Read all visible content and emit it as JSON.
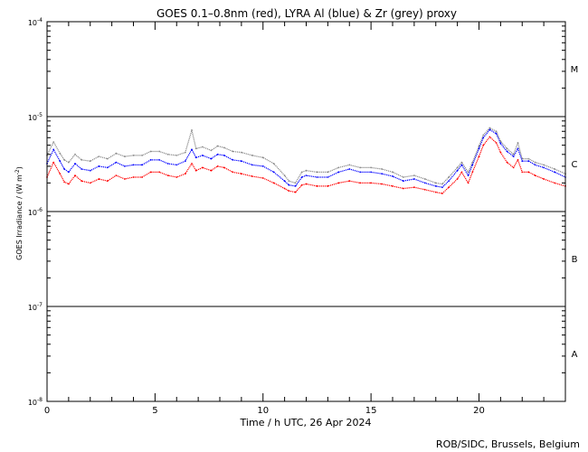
{
  "chart_data": {
    "type": "line",
    "title": "GOES 0.1–0.8nm (red), LYRA Al (blue) & Zr (grey) proxy",
    "xlabel": "Time / h UTC, 26 Apr 2024",
    "ylabel_main": "GOES Irradiance / (W m",
    "ylabel_sup": "-2",
    "ylabel_end": ")",
    "yscale": "log",
    "ylim": [
      1e-08,
      0.0001
    ],
    "xlim": [
      0,
      24
    ],
    "x_ticks": [
      {
        "value": 0,
        "label": "0"
      },
      {
        "value": 5,
        "label": "5"
      },
      {
        "value": 10,
        "label": "10"
      },
      {
        "value": 15,
        "label": "15"
      },
      {
        "value": 20,
        "label": "20"
      }
    ],
    "y_ticks": [
      {
        "value": 0.0001,
        "base": "10",
        "exp": "-4"
      },
      {
        "value": 1e-05,
        "base": "10",
        "exp": "-5"
      },
      {
        "value": 1e-06,
        "base": "10",
        "exp": "-6"
      },
      {
        "value": 1e-07,
        "base": "10",
        "exp": "-7"
      },
      {
        "value": 1e-08,
        "base": "10",
        "exp": "-8"
      }
    ],
    "class_lines": [
      1e-05,
      1e-06,
      1e-07
    ],
    "class_labels": [
      {
        "label": "M",
        "value": 3.2e-05
      },
      {
        "label": "C",
        "value": 3.2e-06
      },
      {
        "label": "B",
        "value": 3.2e-07
      },
      {
        "label": "A",
        "value": 3.2e-08
      }
    ],
    "series": [
      {
        "name": "GOES 0.1–0.8nm",
        "color": "#ff0000",
        "x": [
          0,
          0.3,
          0.6,
          0.8,
          1.0,
          1.3,
          1.6,
          2.0,
          2.4,
          2.8,
          3.2,
          3.6,
          4.0,
          4.4,
          4.8,
          5.2,
          5.6,
          6.0,
          6.4,
          6.7,
          6.9,
          7.2,
          7.6,
          7.9,
          8.2,
          8.6,
          9.0,
          9.5,
          10.0,
          10.5,
          11.0,
          11.2,
          11.5,
          11.8,
          12.0,
          12.5,
          13.0,
          13.5,
          14.0,
          14.5,
          15.0,
          15.5,
          16.0,
          16.5,
          17.0,
          17.5,
          18.0,
          18.3,
          18.6,
          19.0,
          19.2,
          19.5,
          19.7,
          20.0,
          20.2,
          20.5,
          20.8,
          21.0,
          21.3,
          21.6,
          21.8,
          22.0,
          22.3,
          22.6,
          23.0,
          23.5,
          24.0
        ],
        "y": [
          2.3e-06,
          3.3e-06,
          2.5e-06,
          2.05e-06,
          1.95e-06,
          2.4e-06,
          2.1e-06,
          2e-06,
          2.2e-06,
          2.1e-06,
          2.4e-06,
          2.2e-06,
          2.3e-06,
          2.3e-06,
          2.6e-06,
          2.6e-06,
          2.4e-06,
          2.3e-06,
          2.5e-06,
          3.2e-06,
          2.7e-06,
          2.9e-06,
          2.7e-06,
          3e-06,
          2.9e-06,
          2.6e-06,
          2.5e-06,
          2.35e-06,
          2.25e-06,
          2e-06,
          1.75e-06,
          1.65e-06,
          1.6e-06,
          1.9e-06,
          1.95e-06,
          1.85e-06,
          1.85e-06,
          2e-06,
          2.1e-06,
          2e-06,
          2e-06,
          1.95e-06,
          1.85e-06,
          1.75e-06,
          1.8e-06,
          1.7e-06,
          1.6e-06,
          1.55e-06,
          1.8e-06,
          2.2e-06,
          2.6e-06,
          2e-06,
          2.6e-06,
          3.8e-06,
          5e-06,
          6.1e-06,
          5.3e-06,
          4.2e-06,
          3.3e-06,
          2.9e-06,
          3.5e-06,
          2.6e-06,
          2.6e-06,
          2.4e-06,
          2.2e-06,
          2e-06,
          1.85e-06
        ]
      },
      {
        "name": "LYRA Al",
        "color": "#0000ff",
        "x": [
          0,
          0.3,
          0.6,
          0.8,
          1.0,
          1.3,
          1.6,
          2.0,
          2.4,
          2.8,
          3.2,
          3.6,
          4.0,
          4.4,
          4.8,
          5.2,
          5.6,
          6.0,
          6.4,
          6.7,
          6.9,
          7.2,
          7.6,
          7.9,
          8.2,
          8.6,
          9.0,
          9.5,
          10.0,
          10.5,
          11.0,
          11.2,
          11.5,
          11.8,
          12.0,
          12.5,
          13.0,
          13.5,
          14.0,
          14.5,
          15.0,
          15.5,
          16.0,
          16.5,
          17.0,
          17.5,
          18.0,
          18.3,
          18.6,
          19.0,
          19.2,
          19.5,
          19.7,
          20.0,
          20.2,
          20.5,
          20.8,
          21.0,
          21.3,
          21.6,
          21.8,
          22.0,
          22.3,
          22.6,
          23.0,
          23.5,
          24.0
        ],
        "y": [
          3.2e-06,
          4.5e-06,
          3.4e-06,
          2.8e-06,
          2.6e-06,
          3.2e-06,
          2.8e-06,
          2.7e-06,
          3e-06,
          2.9e-06,
          3.3e-06,
          3e-06,
          3.1e-06,
          3.1e-06,
          3.5e-06,
          3.5e-06,
          3.2e-06,
          3.1e-06,
          3.4e-06,
          4.5e-06,
          3.7e-06,
          3.9e-06,
          3.6e-06,
          4e-06,
          3.9e-06,
          3.5e-06,
          3.4e-06,
          3.1e-06,
          3e-06,
          2.6e-06,
          2.1e-06,
          1.9e-06,
          1.85e-06,
          2.3e-06,
          2.4e-06,
          2.3e-06,
          2.3e-06,
          2.6e-06,
          2.8e-06,
          2.6e-06,
          2.6e-06,
          2.5e-06,
          2.35e-06,
          2.1e-06,
          2.2e-06,
          2e-06,
          1.85e-06,
          1.8e-06,
          2.1e-06,
          2.7e-06,
          3.1e-06,
          2.4e-06,
          3.1e-06,
          4.6e-06,
          6e-06,
          7.3e-06,
          6.6e-06,
          5.2e-06,
          4.3e-06,
          3.8e-06,
          4.6e-06,
          3.4e-06,
          3.4e-06,
          3.1e-06,
          2.9e-06,
          2.6e-06,
          2.3e-06
        ]
      },
      {
        "name": "LYRA Zr",
        "color": "#8a8a8a",
        "x": [
          0,
          0.3,
          0.6,
          0.8,
          1.0,
          1.3,
          1.6,
          2.0,
          2.4,
          2.8,
          3.2,
          3.6,
          4.0,
          4.4,
          4.8,
          5.2,
          5.6,
          6.0,
          6.4,
          6.7,
          6.9,
          7.2,
          7.6,
          7.9,
          8.2,
          8.6,
          9.0,
          9.5,
          10.0,
          10.5,
          11.0,
          11.2,
          11.5,
          11.8,
          12.0,
          12.5,
          13.0,
          13.5,
          14.0,
          14.5,
          15.0,
          15.5,
          16.0,
          16.5,
          17.0,
          17.5,
          18.0,
          18.3,
          18.6,
          19.0,
          19.2,
          19.5,
          19.7,
          20.0,
          20.2,
          20.5,
          20.8,
          21.0,
          21.3,
          21.6,
          21.8,
          22.0,
          22.3,
          22.6,
          23.0,
          23.5,
          24.0
        ],
        "y": [
          3.9e-06,
          5.4e-06,
          4.1e-06,
          3.5e-06,
          3.3e-06,
          4e-06,
          3.5e-06,
          3.4e-06,
          3.8e-06,
          3.6e-06,
          4.1e-06,
          3.8e-06,
          3.9e-06,
          3.9e-06,
          4.3e-06,
          4.3e-06,
          4e-06,
          3.9e-06,
          4.2e-06,
          7.2e-06,
          4.6e-06,
          4.8e-06,
          4.4e-06,
          4.9e-06,
          4.7e-06,
          4.3e-06,
          4.2e-06,
          3.9e-06,
          3.7e-06,
          3.2e-06,
          2.4e-06,
          2.1e-06,
          2e-06,
          2.6e-06,
          2.7e-06,
          2.6e-06,
          2.6e-06,
          2.9e-06,
          3.1e-06,
          2.9e-06,
          2.9e-06,
          2.8e-06,
          2.6e-06,
          2.3e-06,
          2.4e-06,
          2.2e-06,
          2e-06,
          1.95e-06,
          2.3e-06,
          2.9e-06,
          3.3e-06,
          2.6e-06,
          3.3e-06,
          4.9e-06,
          6.4e-06,
          7.6e-06,
          7e-06,
          5.5e-06,
          4.6e-06,
          4e-06,
          5.3e-06,
          3.6e-06,
          3.6e-06,
          3.3e-06,
          3.1e-06,
          2.8e-06,
          2.5e-06
        ]
      }
    ]
  },
  "footer": {
    "credit": "ROB/SIDC, Brussels, Belgium"
  }
}
